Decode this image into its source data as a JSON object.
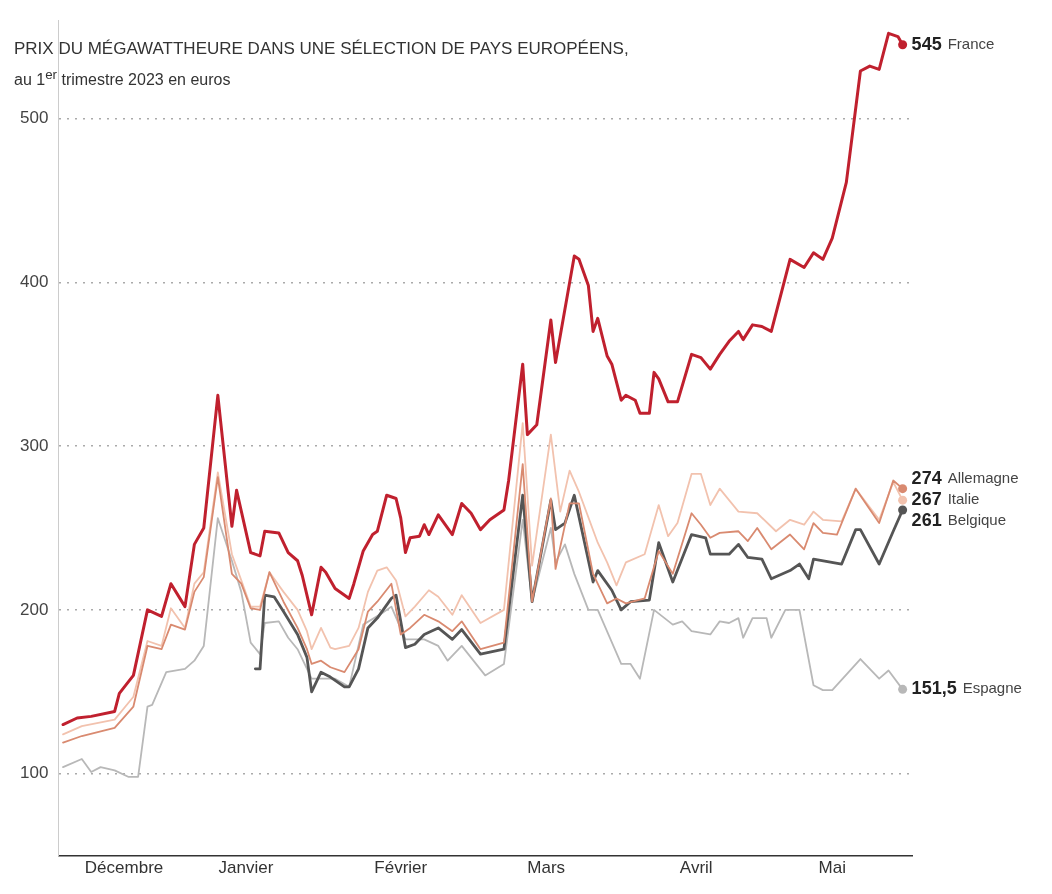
{
  "chart_data": {
    "type": "line",
    "title": "PRIX DU MÉGAWATTHEURE DANS UNE SÉLECTION DE PAYS EUROPÉENS,",
    "subtitle": "au 1$^{er}$ trimestre 2023 en euros",
    "xlim": [
      "2022-12-02",
      "2023-06-02"
    ],
    "xticks": [
      {
        "value": "2022-12-16",
        "label": "Décembre"
      },
      {
        "value": "2023-01-11",
        "label": "Janvier"
      },
      {
        "value": "2023-02-13",
        "label": "Février"
      },
      {
        "value": "2023-03-16",
        "label": "Mars"
      },
      {
        "value": "2023-04-17",
        "label": "Avril"
      },
      {
        "value": "2023-05-16",
        "label": "Mai"
      }
    ],
    "ylim": [
      50,
      560
    ],
    "yticks": [
      100,
      200,
      300,
      400,
      500
    ],
    "grid": "y",
    "legend": false,
    "series": [
      {
        "name": "France",
        "color": "#c0202e",
        "x": [
          "2022-12-03",
          "2022-12-06",
          "2022-12-09",
          "2022-12-14",
          "2022-12-15",
          "2022-12-18",
          "2022-12-21",
          "2022-12-24",
          "2022-12-26",
          "2022-12-29",
          "2022-12-31",
          "2023-01-02",
          "2023-01-05",
          "2023-01-08",
          "2023-01-09",
          "2023-01-12",
          "2023-01-14",
          "2023-01-15",
          "2023-01-18",
          "2023-01-20",
          "2023-01-22",
          "2023-01-23",
          "2023-01-25",
          "2023-01-27",
          "2023-01-28",
          "2023-01-30",
          "2023-02-02",
          "2023-02-03",
          "2023-02-05",
          "2023-02-07",
          "2023-02-08",
          "2023-02-10",
          "2023-02-12",
          "2023-02-13",
          "2023-02-14",
          "2023-02-15",
          "2023-02-17",
          "2023-02-18",
          "2023-02-19",
          "2023-02-21",
          "2023-02-24",
          "2023-02-26",
          "2023-02-28",
          "2023-03-02",
          "2023-03-04",
          "2023-03-07",
          "2023-03-08",
          "2023-03-11",
          "2023-03-12",
          "2023-03-14",
          "2023-03-17",
          "2023-03-18",
          "2023-03-22",
          "2023-03-23",
          "2023-03-25",
          "2023-03-26",
          "2023-03-27",
          "2023-03-29",
          "2023-03-30",
          "2023-04-01",
          "2023-04-02",
          "2023-04-04",
          "2023-04-05",
          "2023-04-07",
          "2023-04-08",
          "2023-04-09",
          "2023-04-11",
          "2023-04-13",
          "2023-04-16",
          "2023-04-18",
          "2023-04-20",
          "2023-04-22",
          "2023-04-24",
          "2023-04-26",
          "2023-04-27",
          "2023-04-29",
          "2023-05-01",
          "2023-05-03",
          "2023-05-07",
          "2023-05-10",
          "2023-05-12",
          "2023-05-14",
          "2023-05-16",
          "2023-05-19",
          "2023-05-22",
          "2023-05-24",
          "2023-05-26",
          "2023-05-28",
          "2023-05-30",
          "2023-05-31"
        ],
        "values": [
          130,
          134,
          135,
          138,
          149,
          160,
          200,
          196,
          216,
          202,
          240,
          250,
          331,
          251,
          273,
          235,
          233,
          248,
          247,
          235,
          230,
          221,
          197,
          226,
          223,
          213,
          207,
          216,
          236,
          246,
          248,
          270,
          268,
          256,
          235,
          244,
          245,
          252,
          246,
          258,
          246,
          265,
          259,
          249,
          255,
          261,
          279,
          350,
          307,
          313,
          377,
          351,
          416,
          414,
          398,
          370,
          378,
          355,
          350,
          328,
          331,
          328,
          320,
          320,
          345,
          341,
          327,
          327,
          356,
          354,
          347,
          356,
          364,
          370,
          365,
          374,
          373,
          370,
          414,
          409,
          418,
          414,
          427,
          461,
          529,
          532,
          530,
          552,
          550,
          545
        ],
        "value_labels": [
          null,
          null,
          null,
          null,
          null,
          null,
          null,
          null,
          null,
          null,
          null,
          null,
          null,
          null,
          null,
          null,
          null,
          null,
          null,
          null,
          null,
          null,
          null,
          null,
          null,
          null,
          null,
          null,
          null,
          null,
          null,
          null,
          null,
          null,
          null,
          null,
          null,
          null,
          null,
          null,
          null,
          null,
          null,
          null,
          null,
          null,
          null,
          null,
          null,
          null,
          null,
          null,
          null,
          null,
          null,
          null,
          null,
          null,
          null,
          null,
          null,
          null,
          null,
          null,
          null,
          null,
          null,
          null,
          null,
          null,
          null,
          null,
          null,
          null,
          null,
          null,
          null,
          null,
          null,
          null,
          null,
          null,
          null,
          null,
          null,
          null,
          null,
          null,
          null,
          "545"
        ]
      },
      {
        "name": "Allemagne",
        "color": "#d98a70",
        "x": [
          "2022-12-03",
          "2022-12-07",
          "2022-12-14",
          "2022-12-18",
          "2022-12-21",
          "2022-12-24",
          "2022-12-26",
          "2022-12-29",
          "2022-12-31",
          "2023-01-02",
          "2023-01-05",
          "2023-01-08",
          "2023-01-10",
          "2023-01-12",
          "2023-01-14",
          "2023-01-16",
          "2023-01-19",
          "2023-01-22",
          "2023-01-24",
          "2023-01-25",
          "2023-01-27",
          "2023-01-29",
          "2023-02-01",
          "2023-02-04",
          "2023-02-06",
          "2023-02-08",
          "2023-02-11",
          "2023-02-13",
          "2023-02-15",
          "2023-02-18",
          "2023-02-21",
          "2023-02-24",
          "2023-02-26",
          "2023-03-02",
          "2023-03-07",
          "2023-03-11",
          "2023-03-13",
          "2023-03-17",
          "2023-03-18",
          "2023-03-21",
          "2023-03-23",
          "2023-03-26",
          "2023-03-29",
          "2023-03-31",
          "2023-04-02",
          "2023-04-06",
          "2023-04-09",
          "2023-04-12",
          "2023-04-16",
          "2023-04-18",
          "2023-04-20",
          "2023-04-22",
          "2023-04-26",
          "2023-04-28",
          "2023-04-30",
          "2023-05-03",
          "2023-05-07",
          "2023-05-10",
          "2023-05-12",
          "2023-05-14",
          "2023-05-17",
          "2023-05-21",
          "2023-05-26",
          "2023-05-29",
          "2023-05-31"
        ],
        "values": [
          119,
          123,
          128,
          141,
          178,
          176,
          191,
          188,
          211,
          220,
          281,
          222,
          216,
          201,
          200,
          223,
          205,
          189,
          176,
          167,
          169,
          165,
          162,
          176,
          199,
          205,
          216,
          185,
          189,
          197,
          193,
          187,
          193,
          176,
          180,
          289,
          205,
          268,
          225,
          265,
          265,
          222,
          204,
          207,
          204,
          207,
          236,
          222,
          259,
          252,
          244,
          247,
          248,
          242,
          250,
          237,
          246,
          237,
          253,
          247,
          246,
          274,
          253,
          279,
          274
        ],
        "value_labels": [
          null,
          null,
          null,
          null,
          null,
          null,
          null,
          null,
          null,
          null,
          null,
          null,
          null,
          null,
          null,
          null,
          null,
          null,
          null,
          null,
          null,
          null,
          null,
          null,
          null,
          null,
          null,
          null,
          null,
          null,
          null,
          null,
          null,
          null,
          null,
          null,
          null,
          null,
          null,
          null,
          null,
          null,
          null,
          null,
          null,
          null,
          null,
          null,
          null,
          null,
          null,
          null,
          null,
          null,
          null,
          null,
          null,
          null,
          null,
          null,
          null,
          null,
          null,
          null,
          "274"
        ]
      },
      {
        "name": "Italie",
        "color": "#f2c2ae",
        "x": [
          "2022-12-03",
          "2022-12-07",
          "2022-12-14",
          "2022-12-18",
          "2022-12-21",
          "2022-12-24",
          "2022-12-26",
          "2022-12-29",
          "2022-12-31",
          "2023-01-02",
          "2023-01-05",
          "2023-01-08",
          "2023-01-10",
          "2023-01-12",
          "2023-01-14",
          "2023-01-16",
          "2023-01-19",
          "2023-01-22",
          "2023-01-24",
          "2023-01-25",
          "2023-01-27",
          "2023-01-29",
          "2023-01-30",
          "2023-02-02",
          "2023-02-04",
          "2023-02-06",
          "2023-02-08",
          "2023-02-10",
          "2023-02-12",
          "2023-02-14",
          "2023-02-16",
          "2023-02-19",
          "2023-02-21",
          "2023-02-24",
          "2023-02-26",
          "2023-03-02",
          "2023-03-07",
          "2023-03-11",
          "2023-03-13",
          "2023-03-17",
          "2023-03-19",
          "2023-03-21",
          "2023-03-23",
          "2023-03-27",
          "2023-03-29",
          "2023-03-31",
          "2023-04-02",
          "2023-04-06",
          "2023-04-09",
          "2023-04-11",
          "2023-04-13",
          "2023-04-16",
          "2023-04-18",
          "2023-04-20",
          "2023-04-22",
          "2023-04-26",
          "2023-04-30",
          "2023-05-04",
          "2023-05-07",
          "2023-05-10",
          "2023-05-12",
          "2023-05-14",
          "2023-05-18",
          "2023-05-21",
          "2023-05-26",
          "2023-05-29",
          "2023-05-31"
        ],
        "values": [
          124,
          129,
          133,
          147,
          181,
          178,
          201,
          189,
          216,
          223,
          284,
          234,
          218,
          202,
          202,
          223,
          211,
          200,
          187,
          176,
          189,
          177,
          176,
          178,
          189,
          211,
          224,
          226,
          218,
          196,
          202,
          212,
          208,
          197,
          209,
          192,
          200,
          314,
          227,
          307,
          260,
          285,
          272,
          241,
          229,
          215,
          229,
          234,
          264,
          245,
          253,
          283,
          283,
          264,
          274,
          260,
          259,
          248,
          255,
          252,
          260,
          255,
          254,
          274,
          255,
          278,
          267
        ],
        "value_labels": [
          null,
          null,
          null,
          null,
          null,
          null,
          null,
          null,
          null,
          null,
          null,
          null,
          null,
          null,
          null,
          null,
          null,
          null,
          null,
          null,
          null,
          null,
          null,
          null,
          null,
          null,
          null,
          null,
          null,
          null,
          null,
          null,
          null,
          null,
          null,
          null,
          null,
          null,
          null,
          null,
          null,
          null,
          null,
          null,
          null,
          null,
          null,
          null,
          null,
          null,
          null,
          null,
          null,
          null,
          null,
          null,
          null,
          null,
          null,
          null,
          null,
          null,
          null,
          null,
          null,
          null,
          "267"
        ]
      },
      {
        "name": "Belgique",
        "color": "#555555",
        "x": [
          "2023-01-13",
          "2023-01-14",
          "2023-01-15",
          "2023-01-17",
          "2023-01-19",
          "2023-01-22",
          "2023-01-24",
          "2023-01-25",
          "2023-01-27",
          "2023-01-29",
          "2023-02-01",
          "2023-02-02",
          "2023-02-04",
          "2023-02-06",
          "2023-02-08",
          "2023-02-11",
          "2023-02-12",
          "2023-02-14",
          "2023-02-16",
          "2023-02-18",
          "2023-02-21",
          "2023-02-24",
          "2023-02-26",
          "2023-03-02",
          "2023-03-07",
          "2023-03-11",
          "2023-03-13",
          "2023-03-17",
          "2023-03-18",
          "2023-03-20",
          "2023-03-22",
          "2023-03-26",
          "2023-03-27",
          "2023-03-30",
          "2023-04-01",
          "2023-04-03",
          "2023-04-07",
          "2023-04-09",
          "2023-04-12",
          "2023-04-16",
          "2023-04-19",
          "2023-04-20",
          "2023-04-24",
          "2023-04-26",
          "2023-04-28",
          "2023-05-01",
          "2023-05-03",
          "2023-05-07",
          "2023-05-09",
          "2023-05-11",
          "2023-05-12",
          "2023-05-18",
          "2023-05-21",
          "2023-05-22",
          "2023-05-26",
          "2023-05-29",
          "2023-05-31"
        ],
        "values": [
          164,
          164,
          209,
          208,
          199,
          185,
          171,
          150,
          162,
          159,
          153,
          153,
          164,
          189,
          195,
          207,
          209,
          177,
          179,
          185,
          189,
          182,
          188,
          173,
          176,
          270,
          205,
          267,
          249,
          253,
          270,
          217,
          224,
          212,
          200,
          205,
          206,
          241,
          217,
          246,
          244,
          234,
          234,
          240,
          232,
          231,
          219,
          224,
          228,
          219,
          231,
          228,
          249,
          249,
          228,
          248,
          261
        ],
        "value_labels": [
          null,
          null,
          null,
          null,
          null,
          null,
          null,
          null,
          null,
          null,
          null,
          null,
          null,
          null,
          null,
          null,
          null,
          null,
          null,
          null,
          null,
          null,
          null,
          null,
          null,
          null,
          null,
          null,
          null,
          null,
          null,
          null,
          null,
          null,
          null,
          null,
          null,
          null,
          null,
          null,
          null,
          null,
          null,
          null,
          null,
          null,
          null,
          null,
          null,
          null,
          null,
          null,
          null,
          null,
          null,
          null,
          "261"
        ]
      },
      {
        "name": "Espagne",
        "color": "#b8b8b8",
        "x": [
          "2022-12-03",
          "2022-12-07",
          "2022-12-09",
          "2022-12-11",
          "2022-12-14",
          "2022-12-17",
          "2022-12-19",
          "2022-12-21",
          "2022-12-22",
          "2022-12-25",
          "2022-12-29",
          "2022-12-31",
          "2023-01-02",
          "2023-01-05",
          "2023-01-08",
          "2023-01-10",
          "2023-01-12",
          "2023-01-14",
          "2023-01-15",
          "2023-01-18",
          "2023-01-20",
          "2023-01-22",
          "2023-01-25",
          "2023-01-28",
          "2023-01-30",
          "2023-02-02",
          "2023-02-05",
          "2023-02-09",
          "2023-02-11",
          "2023-02-14",
          "2023-02-18",
          "2023-02-21",
          "2023-02-23",
          "2023-02-26",
          "2023-03-03",
          "2023-03-07",
          "2023-03-11",
          "2023-03-13",
          "2023-03-17",
          "2023-03-18",
          "2023-03-20",
          "2023-03-22",
          "2023-03-25",
          "2023-03-27",
          "2023-04-01",
          "2023-04-03",
          "2023-04-05",
          "2023-04-08",
          "2023-04-12",
          "2023-04-14",
          "2023-04-16",
          "2023-04-20",
          "2023-04-22",
          "2023-04-24",
          "2023-04-26",
          "2023-04-27",
          "2023-04-29",
          "2023-05-02",
          "2023-05-03",
          "2023-05-06",
          "2023-05-09",
          "2023-05-12",
          "2023-05-14",
          "2023-05-16",
          "2023-05-22",
          "2023-05-26",
          "2023-05-28",
          "2023-05-31"
        ],
        "values": [
          104,
          109,
          101,
          104,
          102,
          98,
          98,
          141,
          142,
          162,
          164,
          169,
          178,
          256,
          230,
          211,
          180,
          173,
          192,
          193,
          183,
          176,
          158,
          158,
          158,
          153,
          191,
          198,
          202,
          182,
          182,
          178,
          169,
          178,
          160,
          167,
          255,
          205,
          250,
          229,
          240,
          222,
          200,
          200,
          167,
          167,
          158,
          200,
          191,
          193,
          187,
          185,
          193,
          192,
          195,
          183,
          195,
          195,
          183,
          200,
          200,
          154,
          151,
          151,
          170,
          158,
          163,
          151.5
        ],
        "value_labels": [
          null,
          null,
          null,
          null,
          null,
          null,
          null,
          null,
          null,
          null,
          null,
          null,
          null,
          null,
          null,
          null,
          null,
          null,
          null,
          null,
          null,
          null,
          null,
          null,
          null,
          null,
          null,
          null,
          null,
          null,
          null,
          null,
          null,
          null,
          null,
          null,
          null,
          null,
          null,
          null,
          null,
          null,
          null,
          null,
          null,
          null,
          null,
          null,
          null,
          null,
          null,
          null,
          null,
          null,
          null,
          null,
          null,
          null,
          null,
          null,
          null,
          null,
          null,
          null,
          null,
          null,
          null,
          "151,5"
        ]
      }
    ]
  }
}
